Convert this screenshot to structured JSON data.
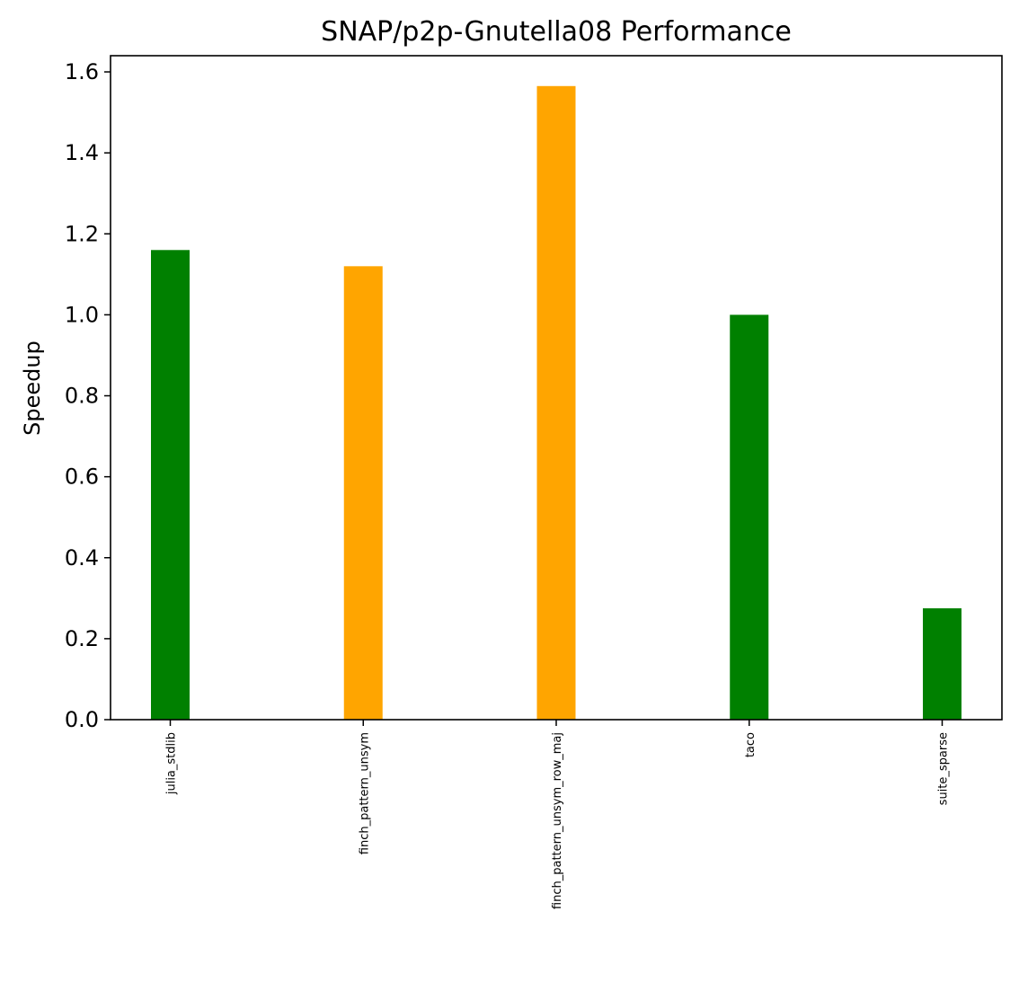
{
  "chart_data": {
    "type": "bar",
    "title": "SNAP/p2p-Gnutella08 Performance",
    "xlabel": "",
    "ylabel": "Speedup",
    "categories": [
      "julia_stdlib",
      "finch_pattern_unsym",
      "finch_pattern_unsym_row_maj",
      "taco",
      "suite_sparse"
    ],
    "values": [
      1.16,
      1.12,
      1.565,
      1.0,
      0.275
    ],
    "bar_colors": [
      "#008000",
      "#ffa500",
      "#ffa500",
      "#008000",
      "#008000"
    ],
    "ylim": [
      0,
      1.64
    ],
    "yticks": [
      0.0,
      0.2,
      0.4,
      0.6,
      0.8,
      1.0,
      1.2,
      1.4,
      1.6
    ],
    "ytick_labels": [
      "0.0",
      "0.2",
      "0.4",
      "0.6",
      "0.8",
      "1.0",
      "1.2",
      "1.4",
      "1.6"
    ],
    "grid": false,
    "legend": "none"
  }
}
